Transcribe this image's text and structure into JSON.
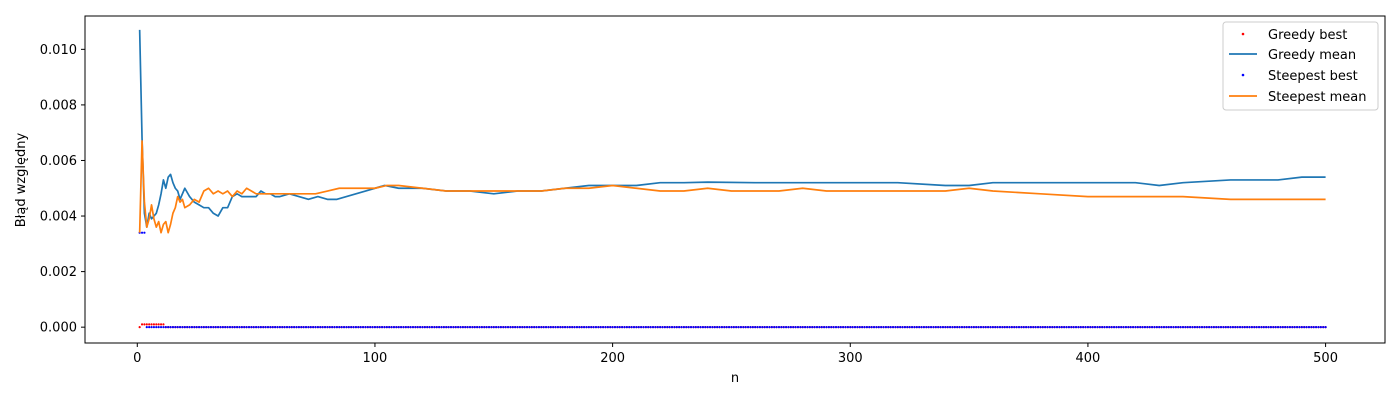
{
  "chart_data": {
    "type": "line",
    "xlabel": "n",
    "ylabel": "Błąd względny",
    "xlim": [
      -22,
      525
    ],
    "ylim": [
      -0.00057,
      0.0112
    ],
    "xticks": [
      0,
      100,
      200,
      300,
      400,
      500
    ],
    "xtick_labels": [
      "0",
      "100",
      "200",
      "300",
      "400",
      "500"
    ],
    "yticks": [
      0,
      0.002,
      0.004,
      0.006,
      0.008,
      0.01
    ],
    "ytick_labels": [
      "0.000",
      "0.002",
      "0.004",
      "0.006",
      "0.008",
      "0.010"
    ],
    "grid": false,
    "legend_position": "top-right",
    "x_range": [
      1,
      500
    ],
    "series": [
      {
        "name": "Greedy best",
        "kind": "dots",
        "color": "#ff0000",
        "points": [
          [
            1,
            0.0
          ],
          [
            2,
            0.0001
          ],
          [
            3,
            0.0001
          ],
          [
            4,
            0.0001
          ],
          [
            5,
            0.0001
          ],
          [
            6,
            0.0001
          ],
          [
            7,
            0.0001
          ],
          [
            8,
            0.0001
          ],
          [
            9,
            0.0001
          ],
          [
            10,
            0.0001
          ],
          [
            11,
            0.0001
          ]
        ],
        "rest_value": 0.0,
        "rest_from": 12
      },
      {
        "name": "Greedy mean",
        "kind": "line",
        "color": "#1f77b4",
        "points": [
          [
            1,
            0.0107
          ],
          [
            2,
            0.0068
          ],
          [
            3,
            0.0041
          ],
          [
            4,
            0.0036
          ],
          [
            5,
            0.0041
          ],
          [
            6,
            0.0039
          ],
          [
            7,
            0.004
          ],
          [
            8,
            0.0041
          ],
          [
            9,
            0.0044
          ],
          [
            10,
            0.0048
          ],
          [
            11,
            0.0053
          ],
          [
            12,
            0.005
          ],
          [
            13,
            0.0054
          ],
          [
            14,
            0.0055
          ],
          [
            15,
            0.0052
          ],
          [
            16,
            0.005
          ],
          [
            17,
            0.0049
          ],
          [
            18,
            0.0046
          ],
          [
            20,
            0.005
          ],
          [
            22,
            0.0047
          ],
          [
            24,
            0.0045
          ],
          [
            26,
            0.0044
          ],
          [
            28,
            0.0043
          ],
          [
            30,
            0.0043
          ],
          [
            32,
            0.0041
          ],
          [
            34,
            0.004
          ],
          [
            36,
            0.0043
          ],
          [
            38,
            0.0043
          ],
          [
            40,
            0.0047
          ],
          [
            42,
            0.0048
          ],
          [
            44,
            0.0047
          ],
          [
            46,
            0.0047
          ],
          [
            48,
            0.0047
          ],
          [
            50,
            0.0047
          ],
          [
            52,
            0.0049
          ],
          [
            54,
            0.0048
          ],
          [
            56,
            0.0048
          ],
          [
            58,
            0.0047
          ],
          [
            60,
            0.0047
          ],
          [
            64,
            0.0048
          ],
          [
            68,
            0.0047
          ],
          [
            72,
            0.0046
          ],
          [
            76,
            0.0047
          ],
          [
            80,
            0.0046
          ],
          [
            84,
            0.0046
          ],
          [
            88,
            0.0047
          ],
          [
            92,
            0.0048
          ],
          [
            96,
            0.0049
          ],
          [
            100,
            0.005
          ],
          [
            104,
            0.0051
          ],
          [
            110,
            0.005
          ],
          [
            120,
            0.005
          ],
          [
            130,
            0.0049
          ],
          [
            140,
            0.0049
          ],
          [
            150,
            0.0048
          ],
          [
            160,
            0.0049
          ],
          [
            170,
            0.0049
          ],
          [
            180,
            0.005
          ],
          [
            190,
            0.0051
          ],
          [
            200,
            0.0051
          ],
          [
            210,
            0.0051
          ],
          [
            220,
            0.0052
          ],
          [
            230,
            0.0052
          ],
          [
            240,
            0.00522
          ],
          [
            260,
            0.0052
          ],
          [
            280,
            0.0052
          ],
          [
            300,
            0.0052
          ],
          [
            320,
            0.0052
          ],
          [
            340,
            0.0051
          ],
          [
            350,
            0.0051
          ],
          [
            360,
            0.0052
          ],
          [
            380,
            0.0052
          ],
          [
            400,
            0.0052
          ],
          [
            420,
            0.0052
          ],
          [
            430,
            0.0051
          ],
          [
            440,
            0.0052
          ],
          [
            460,
            0.0053
          ],
          [
            480,
            0.0053
          ],
          [
            490,
            0.0054
          ],
          [
            500,
            0.0054
          ]
        ]
      },
      {
        "name": "Steepest best",
        "kind": "dots",
        "color": "#0000ff",
        "points": [
          [
            1,
            0.0034
          ],
          [
            2,
            0.0034
          ],
          [
            3,
            0.0034
          ],
          [
            4,
            0.0
          ],
          [
            5,
            0.0
          ],
          [
            6,
            0.0
          ],
          [
            7,
            0.0
          ]
        ],
        "rest_value": 0.0,
        "rest_from": 8
      },
      {
        "name": "Steepest mean",
        "kind": "line",
        "color": "#ff7f0e",
        "points": [
          [
            1,
            0.0034
          ],
          [
            2,
            0.0067
          ],
          [
            3,
            0.0045
          ],
          [
            4,
            0.0036
          ],
          [
            5,
            0.0039
          ],
          [
            6,
            0.0044
          ],
          [
            7,
            0.0039
          ],
          [
            8,
            0.0036
          ],
          [
            9,
            0.0038
          ],
          [
            10,
            0.0034
          ],
          [
            11,
            0.0037
          ],
          [
            12,
            0.0038
          ],
          [
            13,
            0.0034
          ],
          [
            14,
            0.0037
          ],
          [
            15,
            0.0041
          ],
          [
            16,
            0.0043
          ],
          [
            17,
            0.0047
          ],
          [
            18,
            0.0045
          ],
          [
            19,
            0.0046
          ],
          [
            20,
            0.0043
          ],
          [
            22,
            0.0044
          ],
          [
            24,
            0.0046
          ],
          [
            26,
            0.0045
          ],
          [
            28,
            0.0049
          ],
          [
            30,
            0.005
          ],
          [
            32,
            0.0048
          ],
          [
            34,
            0.0049
          ],
          [
            36,
            0.0048
          ],
          [
            38,
            0.0049
          ],
          [
            40,
            0.0047
          ],
          [
            42,
            0.0049
          ],
          [
            44,
            0.0048
          ],
          [
            46,
            0.005
          ],
          [
            48,
            0.0049
          ],
          [
            50,
            0.0048
          ],
          [
            55,
            0.0048
          ],
          [
            60,
            0.0048
          ],
          [
            65,
            0.0048
          ],
          [
            70,
            0.0048
          ],
          [
            75,
            0.0048
          ],
          [
            80,
            0.0049
          ],
          [
            85,
            0.005
          ],
          [
            90,
            0.005
          ],
          [
            95,
            0.005
          ],
          [
            100,
            0.005
          ],
          [
            105,
            0.0051
          ],
          [
            110,
            0.0051
          ],
          [
            120,
            0.005
          ],
          [
            130,
            0.0049
          ],
          [
            140,
            0.0049
          ],
          [
            150,
            0.0049
          ],
          [
            160,
            0.0049
          ],
          [
            170,
            0.0049
          ],
          [
            180,
            0.005
          ],
          [
            190,
            0.005
          ],
          [
            200,
            0.0051
          ],
          [
            210,
            0.005
          ],
          [
            220,
            0.0049
          ],
          [
            230,
            0.0049
          ],
          [
            240,
            0.005
          ],
          [
            250,
            0.0049
          ],
          [
            260,
            0.0049
          ],
          [
            270,
            0.0049
          ],
          [
            280,
            0.005
          ],
          [
            290,
            0.0049
          ],
          [
            300,
            0.0049
          ],
          [
            320,
            0.0049
          ],
          [
            340,
            0.0049
          ],
          [
            350,
            0.005
          ],
          [
            360,
            0.0049
          ],
          [
            380,
            0.0048
          ],
          [
            400,
            0.0047
          ],
          [
            420,
            0.0047
          ],
          [
            440,
            0.0047
          ],
          [
            460,
            0.0046
          ],
          [
            480,
            0.0046
          ],
          [
            500,
            0.0046
          ]
        ]
      }
    ]
  }
}
